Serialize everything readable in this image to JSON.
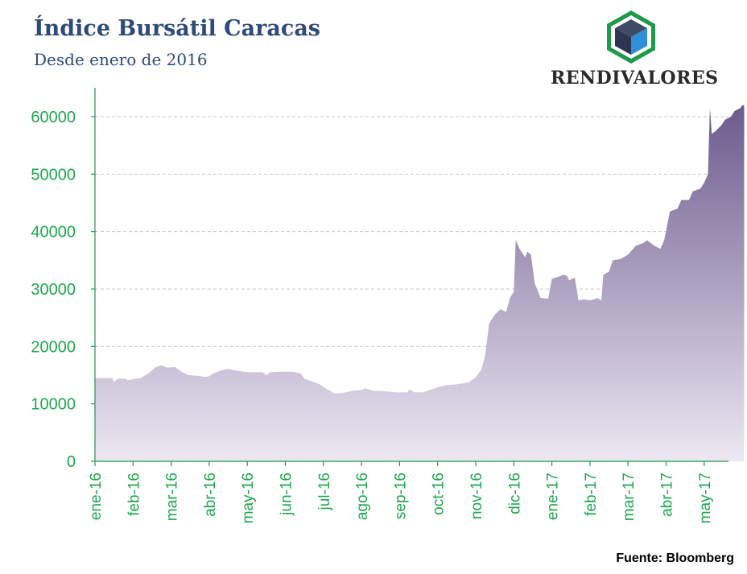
{
  "header": {
    "title": "Índice Bursátil Caracas",
    "subtitle": "Desde enero de 2016"
  },
  "logo": {
    "brand": "RENDIVALORES",
    "icon": "cube-logo-icon",
    "colors": {
      "hex": "#1f9a4a",
      "top": "#3f4a66",
      "left": "#2d3550",
      "right": "#2f8fd6"
    }
  },
  "source": "Fuente: Bloomberg",
  "colors": {
    "axis": "#1f9a4a",
    "tick_text": "#1fa64f",
    "grid": "#c9c9c9",
    "fill_top": "#6d5a8e",
    "fill_bottom": "#ece8f2"
  },
  "chart_data": {
    "type": "area",
    "title": "",
    "xlabel": "",
    "ylabel": "",
    "ylim": [
      0,
      65000
    ],
    "yticks": [
      0,
      10000,
      20000,
      30000,
      40000,
      50000,
      60000
    ],
    "xtick_labels": [
      "ene-16",
      "feb-16",
      "mar-16",
      "abr-16",
      "may-16",
      "jun-16",
      "jul-16",
      "ago-16",
      "sep-16",
      "oct-16",
      "nov-16",
      "dic-16",
      "ene-17",
      "feb-17",
      "mar-17",
      "abr-17",
      "may-17"
    ],
    "grid": true,
    "legend": "none",
    "series": [
      {
        "points": [
          [
            0.0,
            14500
          ],
          [
            0.45,
            14500
          ],
          [
            0.5,
            13800
          ],
          [
            0.6,
            14400
          ],
          [
            0.8,
            14400
          ],
          [
            0.85,
            14100
          ],
          [
            1.0,
            14300
          ],
          [
            1.2,
            14500
          ],
          [
            1.4,
            15300
          ],
          [
            1.6,
            16400
          ],
          [
            1.75,
            16700
          ],
          [
            1.9,
            16300
          ],
          [
            2.1,
            16400
          ],
          [
            2.3,
            15500
          ],
          [
            2.45,
            15000
          ],
          [
            2.7,
            14900
          ],
          [
            2.9,
            14700
          ],
          [
            3.0,
            14800
          ],
          [
            3.1,
            15300
          ],
          [
            3.3,
            15800
          ],
          [
            3.5,
            16100
          ],
          [
            3.7,
            15800
          ],
          [
            4.0,
            15500
          ],
          [
            4.4,
            15500
          ],
          [
            4.5,
            15000
          ],
          [
            4.6,
            15500
          ],
          [
            4.9,
            15600
          ],
          [
            5.2,
            15600
          ],
          [
            5.4,
            15300
          ],
          [
            5.5,
            14400
          ],
          [
            5.7,
            13900
          ],
          [
            5.9,
            13400
          ],
          [
            6.1,
            12500
          ],
          [
            6.3,
            11800
          ],
          [
            6.5,
            11900
          ],
          [
            6.8,
            12300
          ],
          [
            7.0,
            12400
          ],
          [
            7.1,
            12700
          ],
          [
            7.3,
            12300
          ],
          [
            7.6,
            12200
          ],
          [
            7.9,
            12000
          ],
          [
            8.2,
            12000
          ],
          [
            8.25,
            12500
          ],
          [
            8.4,
            12000
          ],
          [
            8.6,
            12000
          ],
          [
            8.8,
            12400
          ],
          [
            9.0,
            12900
          ],
          [
            9.2,
            13200
          ],
          [
            9.5,
            13400
          ],
          [
            9.8,
            13700
          ],
          [
            10.0,
            14600
          ],
          [
            10.15,
            16000
          ],
          [
            10.25,
            18500
          ],
          [
            10.35,
            24000
          ],
          [
            10.5,
            25500
          ],
          [
            10.65,
            26500
          ],
          [
            10.8,
            26000
          ],
          [
            10.9,
            28500
          ],
          [
            11.0,
            29500
          ],
          [
            11.05,
            38500
          ],
          [
            11.15,
            37000
          ],
          [
            11.3,
            35500
          ],
          [
            11.35,
            36500
          ],
          [
            11.45,
            36000
          ],
          [
            11.55,
            31000
          ],
          [
            11.7,
            28500
          ],
          [
            11.9,
            28300
          ],
          [
            12.0,
            31800
          ],
          [
            12.2,
            32200
          ],
          [
            12.3,
            32500
          ],
          [
            12.4,
            32300
          ],
          [
            12.45,
            31500
          ],
          [
            12.6,
            32000
          ],
          [
            12.7,
            28000
          ],
          [
            12.85,
            28200
          ],
          [
            13.0,
            28000
          ],
          [
            13.2,
            28400
          ],
          [
            13.3,
            28000
          ],
          [
            13.35,
            32500
          ],
          [
            13.5,
            33000
          ],
          [
            13.6,
            35000
          ],
          [
            13.8,
            35200
          ],
          [
            14.0,
            36000
          ],
          [
            14.2,
            37500
          ],
          [
            14.4,
            38000
          ],
          [
            14.5,
            38500
          ],
          [
            14.7,
            37500
          ],
          [
            14.85,
            37000
          ],
          [
            14.95,
            38500
          ],
          [
            15.1,
            43500
          ],
          [
            15.3,
            44000
          ],
          [
            15.4,
            45500
          ],
          [
            15.6,
            45500
          ],
          [
            15.7,
            47000
          ],
          [
            15.9,
            47500
          ],
          [
            16.0,
            48500
          ],
          [
            16.1,
            50000
          ],
          [
            16.15,
            61500
          ],
          [
            16.2,
            57000
          ],
          [
            16.3,
            57500
          ],
          [
            16.45,
            58500
          ],
          [
            16.55,
            59500
          ],
          [
            16.7,
            60000
          ],
          [
            16.8,
            61000
          ],
          [
            16.95,
            61500
          ],
          [
            17.0,
            62000
          ],
          [
            17.05,
            62000
          ]
        ]
      }
    ]
  }
}
